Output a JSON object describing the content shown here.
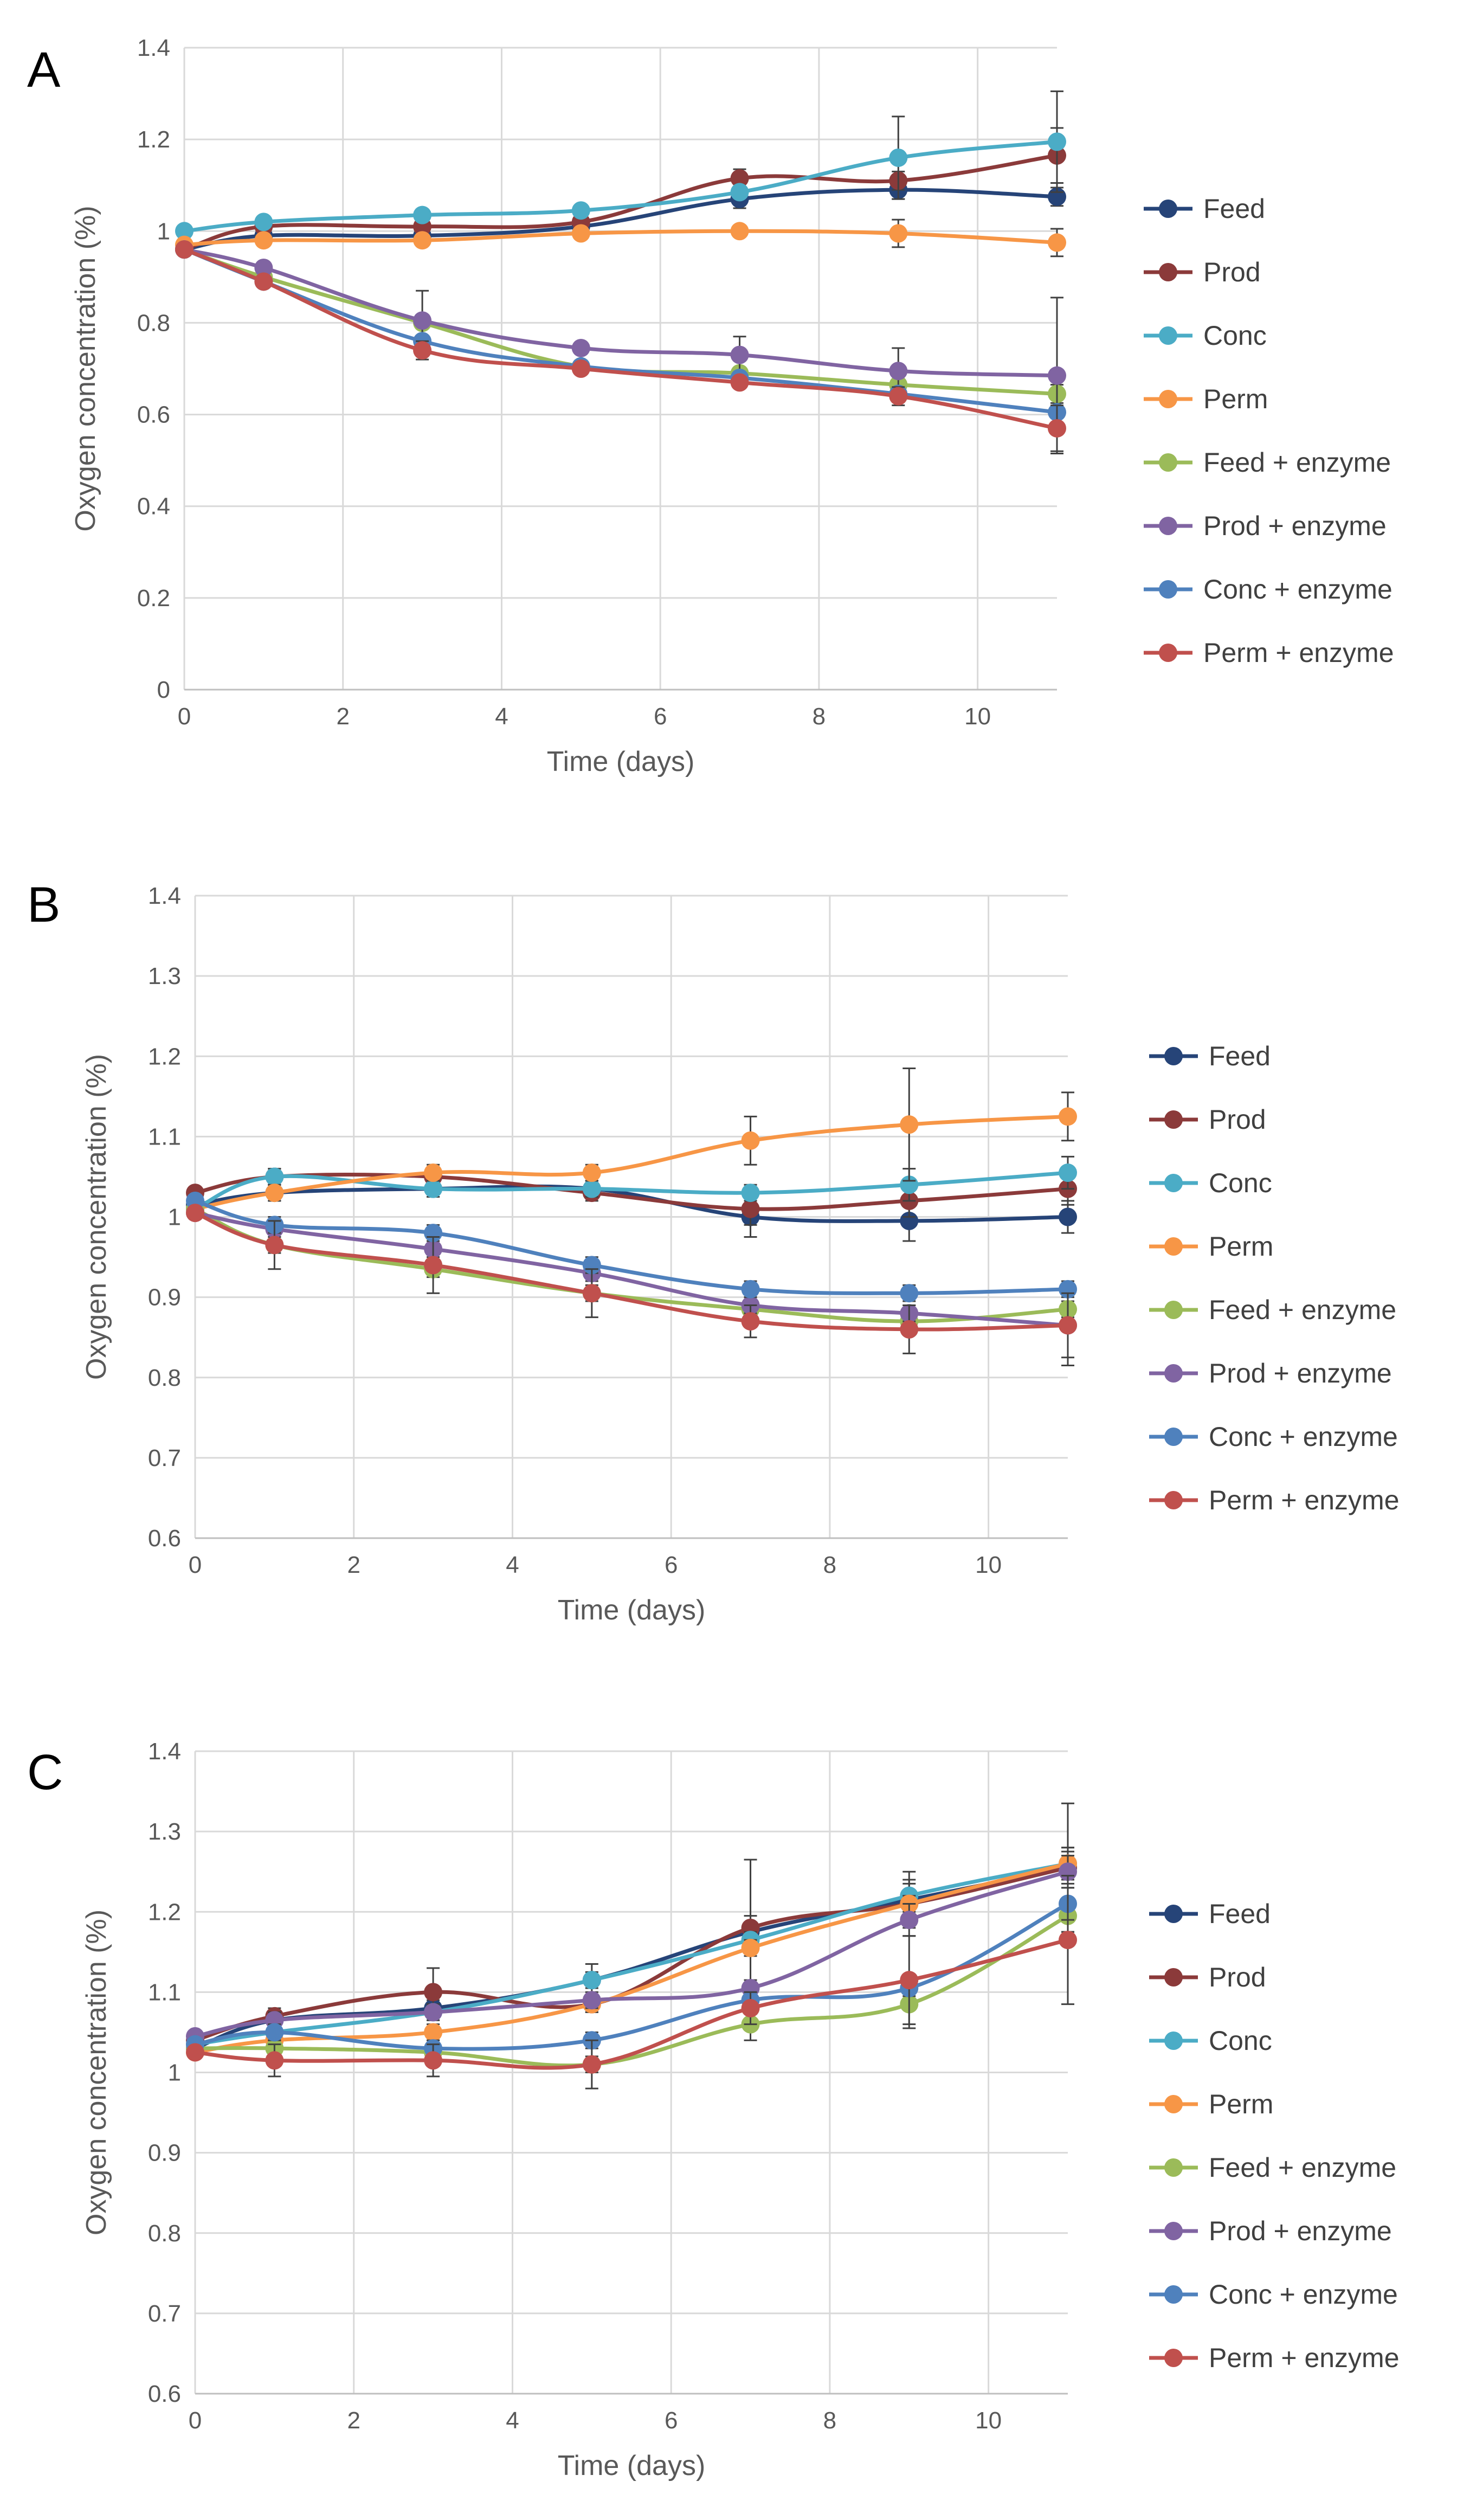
{
  "chart_data": [
    {
      "type": "line",
      "panel_label": "A",
      "xlabel": "Time (days)",
      "ylabel": "Oxygen concentration (%)",
      "xlim": [
        0,
        11
      ],
      "ylim": [
        0,
        1.4
      ],
      "x_ticks": [
        "0",
        "2",
        "4",
        "6",
        "8",
        "10"
      ],
      "y_ticks": [
        "0",
        "0.2",
        "0.4",
        "0.6",
        "0.8",
        "1",
        "1.2",
        "1.4"
      ],
      "x": [
        0,
        1,
        3,
        5,
        7,
        9,
        11
      ],
      "grid": true,
      "legend_position": "right",
      "series": [
        {
          "name": "Feed",
          "color": "#264478",
          "values": [
            0.96,
            0.99,
            0.99,
            1.01,
            1.07,
            1.09,
            1.075
          ],
          "errors": [
            0,
            0.01,
            0.01,
            0.02,
            0.02,
            0.02,
            0.02
          ]
        },
        {
          "name": "Prod",
          "color": "#8B3A3A",
          "values": [
            0.96,
            1.01,
            1.01,
            1.02,
            1.115,
            1.11,
            1.165
          ],
          "errors": [
            0,
            0.01,
            0.01,
            0.01,
            0.02,
            0.02,
            0.06
          ]
        },
        {
          "name": "Conc",
          "color": "#4BACC6",
          "values": [
            1.0,
            1.02,
            1.035,
            1.045,
            1.085,
            1.16,
            1.195
          ],
          "errors": [
            0,
            0.01,
            0.01,
            0.01,
            0.01,
            0.09,
            0.11
          ]
        },
        {
          "name": "Perm",
          "color": "#F79646",
          "values": [
            0.97,
            0.98,
            0.98,
            0.995,
            1.0,
            0.995,
            0.975
          ],
          "errors": [
            0,
            0.01,
            0.01,
            0.01,
            0.01,
            0.03,
            0.03
          ]
        },
        {
          "name": "Feed + enzyme",
          "color": "#9BBB59",
          "values": [
            0.96,
            0.9,
            0.8,
            0.705,
            0.69,
            0.665,
            0.645
          ],
          "errors": [
            0,
            0.01,
            0.01,
            0.01,
            0.01,
            0.01,
            0.02
          ]
        },
        {
          "name": "Prod + enzyme",
          "color": "#8064A2",
          "values": [
            0.96,
            0.92,
            0.805,
            0.745,
            0.73,
            0.695,
            0.685
          ],
          "errors": [
            0,
            0.01,
            0.065,
            0.01,
            0.04,
            0.05,
            0.17
          ]
        },
        {
          "name": "Conc + enzyme",
          "color": "#4F81BD",
          "values": [
            0.96,
            0.89,
            0.76,
            0.705,
            0.68,
            0.645,
            0.605
          ],
          "errors": [
            0,
            0.01,
            0.01,
            0.01,
            0.01,
            0.01,
            0.01
          ]
        },
        {
          "name": "Perm + enzyme",
          "color": "#C0504D",
          "values": [
            0.96,
            0.89,
            0.74,
            0.7,
            0.67,
            0.64,
            0.57
          ],
          "errors": [
            0,
            0.01,
            0.02,
            0.01,
            0.01,
            0.02,
            0.05
          ]
        }
      ]
    },
    {
      "type": "line",
      "panel_label": "B",
      "xlabel": "Time (days)",
      "ylabel": "Oxygen concentration (%)",
      "xlim": [
        0,
        11
      ],
      "ylim": [
        0.6,
        1.4
      ],
      "x_ticks": [
        "0",
        "2",
        "4",
        "6",
        "8",
        "10"
      ],
      "y_ticks": [
        "0.6",
        "0.7",
        "0.8",
        "0.9",
        "1",
        "1.1",
        "1.2",
        "1.3",
        "1.4"
      ],
      "x": [
        0,
        1,
        3,
        5,
        7,
        9,
        11
      ],
      "grid": true,
      "legend_position": "right",
      "series": [
        {
          "name": "Feed",
          "color": "#264478",
          "values": [
            1.015,
            1.03,
            1.035,
            1.035,
            1.0,
            0.995,
            1.0
          ],
          "errors": [
            0,
            0.01,
            0.01,
            0.01,
            0.025,
            0.025,
            0.02
          ]
        },
        {
          "name": "Prod",
          "color": "#8B3A3A",
          "values": [
            1.03,
            1.05,
            1.05,
            1.03,
            1.01,
            1.02,
            1.035
          ],
          "errors": [
            0,
            0.01,
            0.01,
            0.01,
            0.02,
            0.02,
            0.02
          ]
        },
        {
          "name": "Conc",
          "color": "#4BACC6",
          "values": [
            1.01,
            1.05,
            1.035,
            1.035,
            1.03,
            1.04,
            1.055
          ],
          "errors": [
            0,
            0.01,
            0.01,
            0.01,
            0.01,
            0.02,
            0.02
          ]
        },
        {
          "name": "Perm",
          "color": "#F79646",
          "values": [
            1.01,
            1.03,
            1.055,
            1.055,
            1.095,
            1.115,
            1.125
          ],
          "errors": [
            0,
            0.01,
            0.01,
            0.01,
            0.03,
            0.07,
            0.03
          ]
        },
        {
          "name": "Feed + enzyme",
          "color": "#9BBB59",
          "values": [
            1.01,
            0.965,
            0.935,
            0.905,
            0.885,
            0.87,
            0.885
          ],
          "errors": [
            0,
            0.01,
            0.01,
            0.01,
            0.01,
            0.01,
            0.01
          ]
        },
        {
          "name": "Prod + enzyme",
          "color": "#8064A2",
          "values": [
            1.005,
            0.985,
            0.96,
            0.93,
            0.89,
            0.88,
            0.865
          ],
          "errors": [
            0,
            0.01,
            0.01,
            0.01,
            0.01,
            0.01,
            0.05
          ]
        },
        {
          "name": "Conc + enzyme",
          "color": "#4F81BD",
          "values": [
            1.02,
            0.99,
            0.98,
            0.94,
            0.91,
            0.905,
            0.91
          ],
          "errors": [
            0,
            0.01,
            0.01,
            0.01,
            0.01,
            0.01,
            0.01
          ]
        },
        {
          "name": "Perm + enzyme",
          "color": "#C0504D",
          "values": [
            1.005,
            0.965,
            0.94,
            0.905,
            0.87,
            0.86,
            0.865
          ],
          "errors": [
            0,
            0.03,
            0.035,
            0.03,
            0.02,
            0.03,
            0.04
          ]
        }
      ]
    },
    {
      "type": "line",
      "panel_label": "C",
      "xlabel": "Time (days)",
      "ylabel": "Oxygen concentration (%)",
      "xlim": [
        0,
        11
      ],
      "ylim": [
        0.6,
        1.4
      ],
      "x_ticks": [
        "0",
        "2",
        "4",
        "6",
        "8",
        "10"
      ],
      "y_ticks": [
        "0.6",
        "0.7",
        "0.8",
        "0.9",
        "1",
        "1.1",
        "1.2",
        "1.3",
        "1.4"
      ],
      "x": [
        0,
        1,
        3,
        5,
        7,
        9,
        11
      ],
      "grid": true,
      "legend_position": "right",
      "series": [
        {
          "name": "Feed",
          "color": "#264478",
          "values": [
            1.03,
            1.065,
            1.08,
            1.115,
            1.175,
            1.215,
            1.255
          ],
          "errors": [
            0,
            0.01,
            0.01,
            0.01,
            0.02,
            0.02,
            0.02
          ]
        },
        {
          "name": "Prod",
          "color": "#8B3A3A",
          "values": [
            1.04,
            1.07,
            1.1,
            1.085,
            1.18,
            1.21,
            1.255
          ],
          "errors": [
            0,
            0.01,
            0.03,
            0.01,
            0.085,
            0.03,
            0.08
          ]
        },
        {
          "name": "Conc",
          "color": "#4BACC6",
          "values": [
            1.035,
            1.05,
            1.075,
            1.115,
            1.165,
            1.22,
            1.26
          ],
          "errors": [
            0,
            0.01,
            0.01,
            0.02,
            0.01,
            0.03,
            0.02
          ]
        },
        {
          "name": "Perm",
          "color": "#F79646",
          "values": [
            1.025,
            1.04,
            1.05,
            1.085,
            1.155,
            1.21,
            1.26
          ],
          "errors": [
            0,
            0.01,
            0.01,
            0.01,
            0.01,
            0.01,
            0.02
          ]
        },
        {
          "name": "Feed + enzyme",
          "color": "#9BBB59",
          "values": [
            1.03,
            1.03,
            1.025,
            1.01,
            1.06,
            1.085,
            1.195
          ],
          "errors": [
            0,
            0.01,
            0.01,
            0.01,
            0.02,
            0.03,
            0.02
          ]
        },
        {
          "name": "Prod + enzyme",
          "color": "#8064A2",
          "values": [
            1.045,
            1.065,
            1.075,
            1.09,
            1.105,
            1.19,
            1.25
          ],
          "errors": [
            0,
            0.01,
            0.01,
            0.01,
            0.01,
            0.02,
            0.02
          ]
        },
        {
          "name": "Conc + enzyme",
          "color": "#4F81BD",
          "values": [
            1.035,
            1.05,
            1.03,
            1.04,
            1.09,
            1.105,
            1.21
          ],
          "errors": [
            0,
            0.01,
            0.01,
            0.01,
            0.01,
            0.01,
            0.02
          ]
        },
        {
          "name": "Perm + enzyme",
          "color": "#C0504D",
          "values": [
            1.025,
            1.015,
            1.015,
            1.01,
            1.08,
            1.115,
            1.165
          ],
          "errors": [
            0,
            0.02,
            0.02,
            0.03,
            0.02,
            0.055,
            0.08
          ]
        }
      ]
    }
  ]
}
